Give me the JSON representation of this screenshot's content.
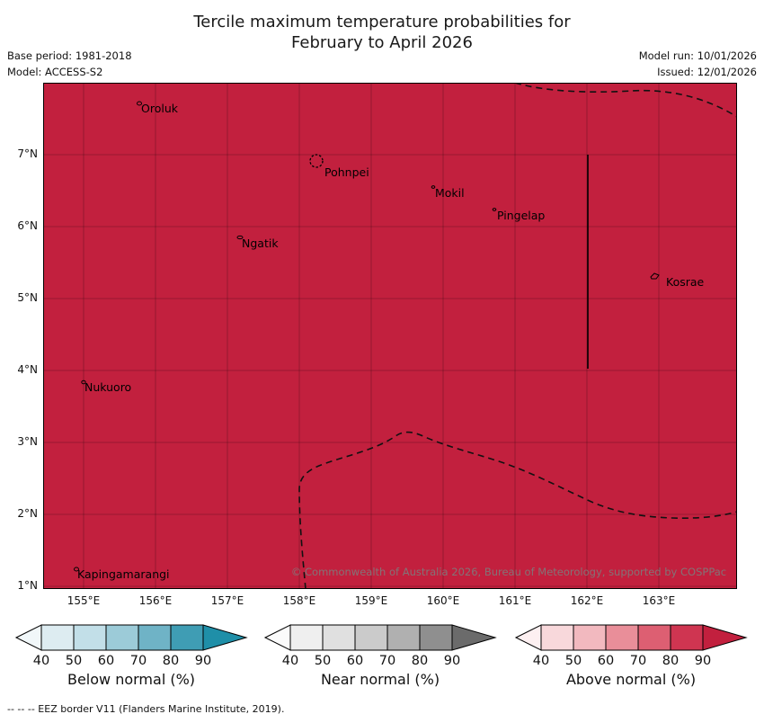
{
  "title": {
    "line1": "Tercile maximum temperature probabilities for",
    "line2": "February to April 2026"
  },
  "meta": {
    "base_period": "Base period: 1981-2018",
    "model": "Model: ACCESS-S2",
    "model_run": "Model run: 10/01/2026",
    "issued": "Issued: 12/01/2026"
  },
  "map": {
    "fill": "#c2203e",
    "islands": [
      {
        "name": "Oroluk"
      },
      {
        "name": "Pohnpei"
      },
      {
        "name": "Mokil"
      },
      {
        "name": "Pingelap"
      },
      {
        "name": "Ngatik"
      },
      {
        "name": "Kosrae"
      },
      {
        "name": "Nukuoro"
      },
      {
        "name": "Kapingamarangi"
      }
    ],
    "copyright": "© Commonwealth of Australia 2026, Bureau of Meteorology, supported by COSPPac"
  },
  "axes": {
    "lat_ticks": [
      "7°N",
      "6°N",
      "5°N",
      "4°N",
      "3°N",
      "2°N",
      "1°N"
    ],
    "lon_ticks": [
      "155°E",
      "156°E",
      "157°E",
      "158°E",
      "159°E",
      "160°E",
      "161°E",
      "162°E",
      "163°E"
    ]
  },
  "legends": [
    {
      "label": "Below normal (%)",
      "ticks": [
        "40",
        "50",
        "60",
        "70",
        "80",
        "90"
      ],
      "colors": [
        "#f1f7f9",
        "#ddecf1",
        "#c2dfe8",
        "#9ccbd8",
        "#6fb3c6",
        "#3f9db4",
        "#1f8fa8"
      ]
    },
    {
      "label": "Near normal (%)",
      "ticks": [
        "40",
        "50",
        "60",
        "70",
        "80",
        "90"
      ],
      "colors": [
        "#fbfbfb",
        "#efefef",
        "#e0e0e0",
        "#cbcbcb",
        "#b0b0b0",
        "#8f8f8f",
        "#6b6b6b"
      ]
    },
    {
      "label": "Above normal (%)",
      "ticks": [
        "40",
        "50",
        "60",
        "70",
        "80",
        "90"
      ],
      "colors": [
        "#fdf0f1",
        "#f8d8db",
        "#f2b9bf",
        "#e98e99",
        "#dd5f72",
        "#cf3551",
        "#c2203e"
      ]
    }
  ],
  "footnote": "--  --  --  EEZ border V11 (Flanders Marine Institute, 2019)."
}
